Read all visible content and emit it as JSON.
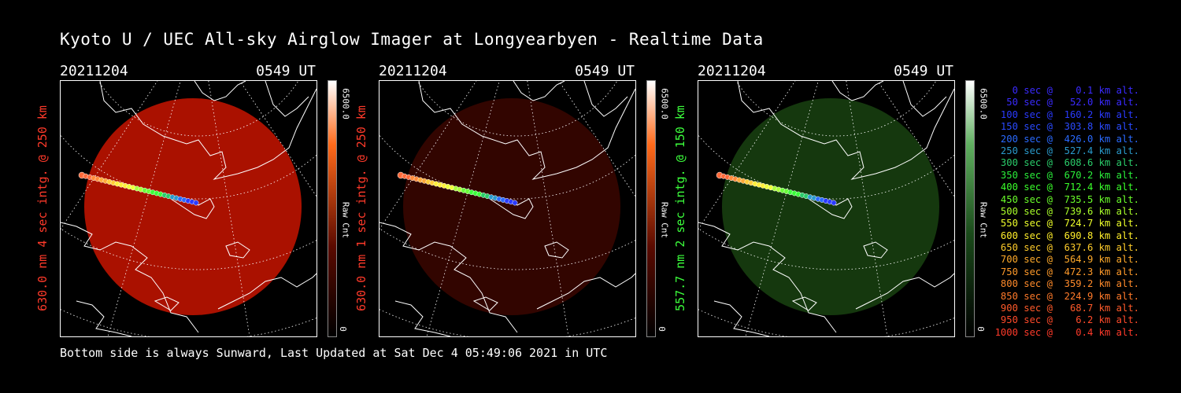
{
  "title": "Kyoto U / UEC All-sky Airglow Imager at Longyearbyen - Realtime Data",
  "footer": "Bottom side is always Sunward, Last Updated at Sat Dec  4 05:49:06 2021 in UTC",
  "panels": [
    {
      "date": "20211204",
      "time": "0549 UT",
      "ylabel": "630.0 nm 4 sec intg. @ 250 km",
      "label_color": "#ff3a2a",
      "cbar_max": "6500.0",
      "cbar_label": "Raw Cnt",
      "cbar_min": "0",
      "image_color": "red",
      "intensity": 0.85
    },
    {
      "date": "20211204",
      "time": "0549 UT",
      "ylabel": "630.0 nm 1 sec intg. @ 250 km",
      "label_color": "#ff3a2a",
      "cbar_max": "6500.0",
      "cbar_label": "Raw Cnt",
      "cbar_min": "0",
      "image_color": "red",
      "intensity": 0.25
    },
    {
      "date": "20211204",
      "time": "0549 UT",
      "ylabel": "557.7 nm 2 sec intg. @ 150 km",
      "label_color": "#3cff3c",
      "cbar_max": "6500.0",
      "cbar_label": "Raw Cnt",
      "cbar_min": "0",
      "image_color": "green",
      "intensity": 0.35
    }
  ],
  "legend": [
    {
      "text": "   0 sec @    0.1 km alt.",
      "color": "#3a2aff"
    },
    {
      "text": "  50 sec @   52.0 km alt.",
      "color": "#3a2aff"
    },
    {
      "text": " 100 sec @  160.2 km alt.",
      "color": "#2a3aff"
    },
    {
      "text": " 150 sec @  303.8 km alt.",
      "color": "#2a4aff"
    },
    {
      "text": " 200 sec @  426.0 km alt.",
      "color": "#2a6aff"
    },
    {
      "text": " 250 sec @  527.4 km alt.",
      "color": "#2a9acc"
    },
    {
      "text": " 300 sec @  608.6 km alt.",
      "color": "#2acc6a"
    },
    {
      "text": " 350 sec @  670.2 km alt.",
      "color": "#2aee3a"
    },
    {
      "text": " 400 sec @  712.4 km alt.",
      "color": "#3aff2a"
    },
    {
      "text": " 450 sec @  735.5 km alt.",
      "color": "#6aff2a"
    },
    {
      "text": " 500 sec @  739.6 km alt.",
      "color": "#aaff2a"
    },
    {
      "text": " 550 sec @  724.7 km alt.",
      "color": "#eeff2a"
    },
    {
      "text": " 600 sec @  690.8 km alt.",
      "color": "#ffee2a"
    },
    {
      "text": " 650 sec @  637.6 km alt.",
      "color": "#ffcc2a"
    },
    {
      "text": " 700 sec @  564.9 km alt.",
      "color": "#ffaa2a"
    },
    {
      "text": " 750 sec @  472.3 km alt.",
      "color": "#ff9a2a"
    },
    {
      "text": " 800 sec @  359.2 km alt.",
      "color": "#ff8a2a"
    },
    {
      "text": " 850 sec @  224.9 km alt.",
      "color": "#ff7a2a"
    },
    {
      "text": " 900 sec @   68.7 km alt.",
      "color": "#ff5a2a"
    },
    {
      "text": " 950 sec @    6.2 km alt.",
      "color": "#ff4a2a"
    },
    {
      "text": "1000 sec @    0.4 km alt.",
      "color": "#ff3a2a"
    }
  ]
}
